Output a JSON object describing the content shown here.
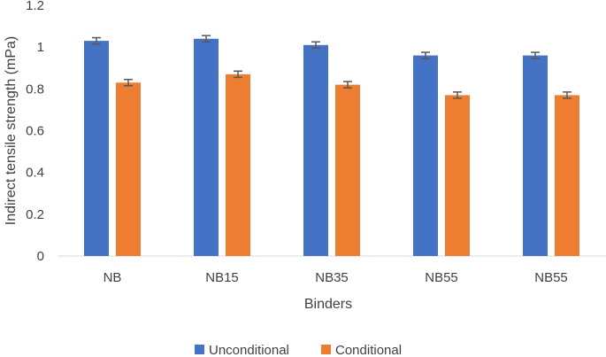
{
  "chart_data": {
    "type": "bar",
    "title": "",
    "xlabel": "Binders",
    "ylabel": "Indirect tensile strength (mPa)",
    "categories": [
      "NB",
      "NB15",
      "NB35",
      "NB55",
      "NB55"
    ],
    "ylim": [
      0,
      1.2
    ],
    "yticks": [
      "0",
      "0.2",
      "0.4",
      "0.6",
      "0.8",
      "1",
      "1.2"
    ],
    "grid": false,
    "legend_position": "bottom",
    "series": [
      {
        "name": "Unconditional",
        "color": "#4472C4",
        "values": [
          1.03,
          1.04,
          1.01,
          0.96,
          0.96
        ],
        "errors": [
          0.015,
          0.015,
          0.015,
          0.015,
          0.015
        ]
      },
      {
        "name": "Conditional",
        "color": "#ED7D31",
        "values": [
          0.83,
          0.87,
          0.82,
          0.77,
          0.77
        ],
        "errors": [
          0.015,
          0.015,
          0.015,
          0.015,
          0.015
        ]
      }
    ]
  }
}
